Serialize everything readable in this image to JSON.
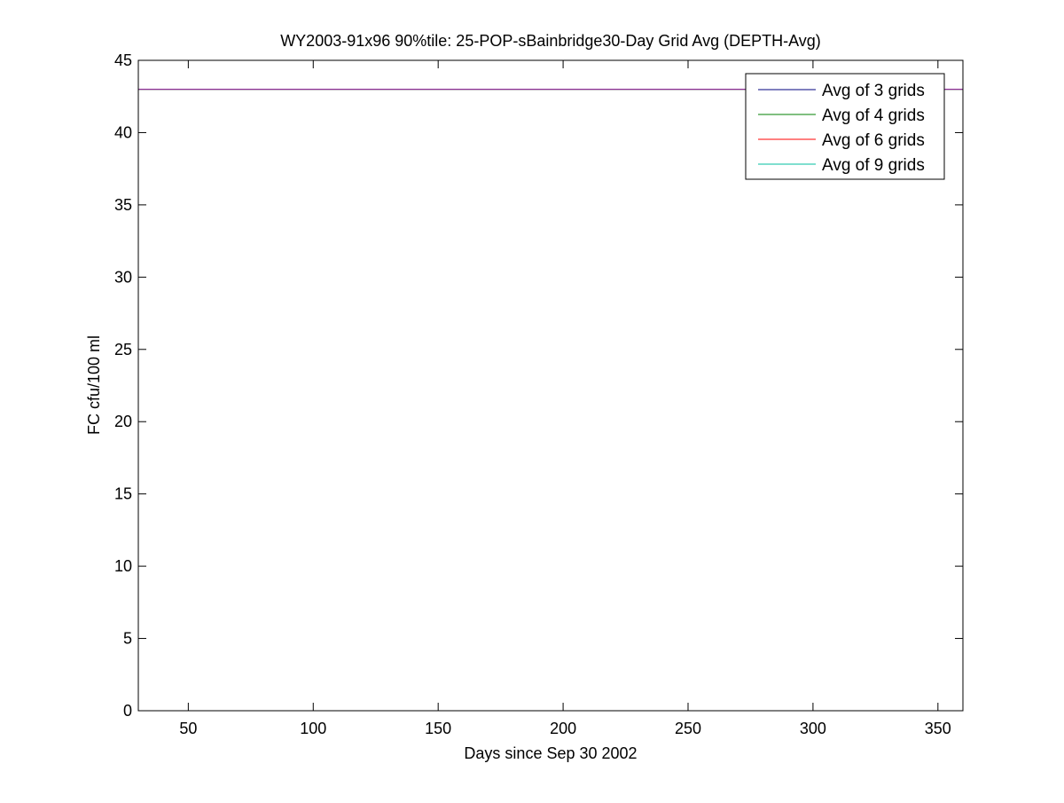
{
  "chart_data": {
    "type": "line",
    "title": "WY2003-91x96 90%tile: 25-POP-sBainbridge30-Day Grid Avg (DEPTH-Avg)",
    "xlabel": "Days since Sep 30 2002",
    "ylabel": "FC cfu/100 ml",
    "xlim": [
      30,
      360
    ],
    "ylim": [
      0,
      45
    ],
    "xticks": [
      50,
      100,
      150,
      200,
      250,
      300,
      350
    ],
    "yticks": [
      0,
      5,
      10,
      15,
      20,
      25,
      30,
      35,
      40,
      45
    ],
    "grid": false,
    "legend_position": "top-right",
    "series": [
      {
        "name": "Avg of 3 grids",
        "color": "#00007f",
        "x": [
          30,
          360
        ],
        "y": [
          43,
          43
        ]
      },
      {
        "name": "Avg of 4 grids",
        "color": "#007f00",
        "x": [
          30,
          360
        ],
        "y": [
          43,
          43
        ]
      },
      {
        "name": "Avg of 6 grids",
        "color": "#ff0000",
        "x": [
          30,
          360
        ],
        "y": [
          43,
          43
        ]
      },
      {
        "name": "Avg of 9 grids",
        "color": "#00bf9f",
        "x": [
          30,
          360
        ],
        "y": [
          43,
          43
        ]
      },
      {
        "color": "#9f209f",
        "x": [
          30,
          360
        ],
        "y": [
          43,
          43
        ]
      }
    ]
  }
}
